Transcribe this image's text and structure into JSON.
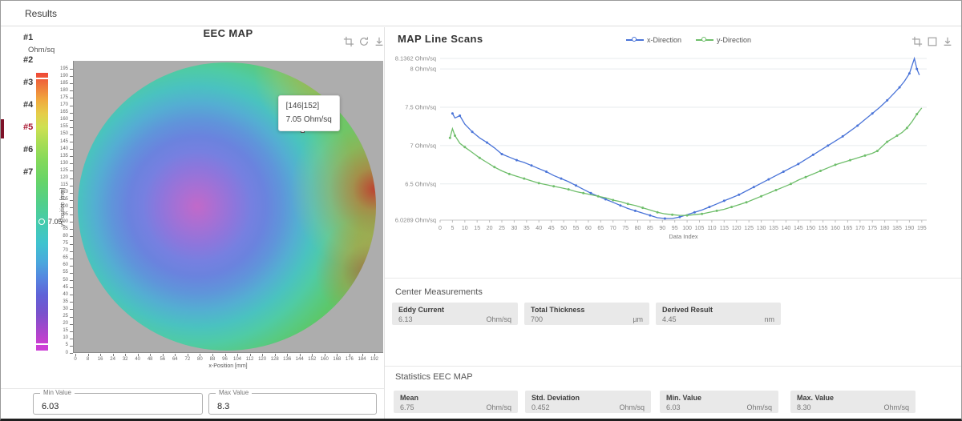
{
  "colors": {
    "active_item": "#a8132e",
    "series_x": "#4a74d8",
    "series_y": "#6fbe6b",
    "colorbar_min_color": "#cc3fd6",
    "colorbar_max_color": "#ef4837"
  },
  "header": {
    "title": "Results"
  },
  "sidebar": {
    "items": [
      {
        "label": "#1",
        "active": false
      },
      {
        "label": "#2",
        "active": false
      },
      {
        "label": "#3",
        "active": false
      },
      {
        "label": "#4",
        "active": false
      },
      {
        "label": "#5",
        "active": true
      },
      {
        "label": "#6",
        "active": false
      },
      {
        "label": "#7",
        "active": false
      }
    ]
  },
  "range_inputs": {
    "min": {
      "label": "Min Value",
      "value": "6.03"
    },
    "max": {
      "label": "Max Value",
      "value": "8.3"
    }
  },
  "measurements": {
    "title": "Center Measurements",
    "items": [
      {
        "label": "Eddy Current",
        "value": "6.13",
        "unit": "Ohm/sq"
      },
      {
        "label": "Total Thickness",
        "value": "700",
        "unit": "µm"
      },
      {
        "label": "Derived Result",
        "value": "4.45",
        "unit": "nm"
      }
    ]
  },
  "statistics": {
    "title": "Statistics EEC MAP",
    "items": [
      {
        "label": "Mean",
        "value": "6.75",
        "unit": "Ohm/sq"
      },
      {
        "label": "Std. Deviation",
        "value": "0.452",
        "unit": "Ohm/sq"
      },
      {
        "label": "Min. Value",
        "value": "6.03",
        "unit": "Ohm/sq"
      },
      {
        "label": "Max. Value",
        "value": "8.30",
        "unit": "Ohm/sq"
      }
    ]
  },
  "chart_data": [
    {
      "id": "eec_map",
      "type": "heatmap",
      "title": "EEC MAP",
      "xlabel": "x-Position [mm]",
      "ylabel": "y-Position [mm]",
      "x_ticks": {
        "min": 0,
        "max": 192,
        "step": 8
      },
      "y_ticks": {
        "min": 0,
        "max": 195,
        "step": 5
      },
      "colorbar": {
        "unit": "Ohm/sq",
        "min": 6.03,
        "max": 8.3,
        "marker": 7.05
      },
      "hover_point": {
        "x": 146,
        "y": 152,
        "value": 7.05,
        "label_position": "[146|152]",
        "label_value": "7.05 Ohm/sq"
      },
      "pattern": "circular wafer map: low values (~6.03, magenta/purple) around center-left near (75,100); values rise through blue, cyan and green toward the rim; maximum (~8.3, orange/red) along the right edge"
    },
    {
      "id": "map_line_scans",
      "type": "line",
      "title": "MAP Line Scans",
      "xlabel": "Data Index",
      "ylabel_unit": "Ohm/sq",
      "x_axis": {
        "min": 0,
        "max": 197,
        "tick_step": 5,
        "tick_max": 195
      },
      "y_axis": {
        "min": 6.0289,
        "max": 8.1362,
        "gridlines": [
          8.1362,
          8,
          7.5,
          7,
          6.5,
          6.0289
        ],
        "gridline_labels": [
          "8.1362 Ohm/sq",
          "8 Ohm/sq",
          "7.5 Ohm/sq",
          "7 Ohm/sq",
          "6.5 Ohm/sq",
          "6.0289 Ohm/sq"
        ]
      },
      "legend_position": "top",
      "grid": "horizontal-only",
      "series": [
        {
          "name": "x-Direction",
          "color": "#4a74d8",
          "points": [
            [
              5,
              7.42
            ],
            [
              6,
              7.36
            ],
            [
              8,
              7.39
            ],
            [
              10,
              7.28
            ],
            [
              13,
              7.18
            ],
            [
              16,
              7.1
            ],
            [
              19,
              7.04
            ],
            [
              22,
              6.97
            ],
            [
              25,
              6.89
            ],
            [
              28,
              6.85
            ],
            [
              31,
              6.81
            ],
            [
              34,
              6.78
            ],
            [
              37,
              6.74
            ],
            [
              40,
              6.7
            ],
            [
              43,
              6.66
            ],
            [
              46,
              6.61
            ],
            [
              49,
              6.57
            ],
            [
              52,
              6.53
            ],
            [
              55,
              6.48
            ],
            [
              58,
              6.43
            ],
            [
              61,
              6.38
            ],
            [
              64,
              6.34
            ],
            [
              67,
              6.3
            ],
            [
              70,
              6.26
            ],
            [
              73,
              6.22
            ],
            [
              76,
              6.18
            ],
            [
              79,
              6.15
            ],
            [
              82,
              6.12
            ],
            [
              85,
              6.09
            ],
            [
              88,
              6.06
            ],
            [
              91,
              6.05
            ],
            [
              94,
              6.05
            ],
            [
              97,
              6.07
            ],
            [
              100,
              6.1
            ],
            [
              103,
              6.13
            ],
            [
              106,
              6.16
            ],
            [
              109,
              6.2
            ],
            [
              112,
              6.24
            ],
            [
              115,
              6.28
            ],
            [
              118,
              6.32
            ],
            [
              121,
              6.36
            ],
            [
              124,
              6.41
            ],
            [
              127,
              6.46
            ],
            [
              130,
              6.51
            ],
            [
              133,
              6.56
            ],
            [
              136,
              6.61
            ],
            [
              139,
              6.66
            ],
            [
              142,
              6.71
            ],
            [
              145,
              6.76
            ],
            [
              148,
              6.82
            ],
            [
              151,
              6.88
            ],
            [
              154,
              6.94
            ],
            [
              157,
              7.0
            ],
            [
              160,
              7.06
            ],
            [
              163,
              7.12
            ],
            [
              166,
              7.19
            ],
            [
              169,
              7.26
            ],
            [
              172,
              7.34
            ],
            [
              175,
              7.42
            ],
            [
              178,
              7.5
            ],
            [
              181,
              7.59
            ],
            [
              184,
              7.69
            ],
            [
              186,
              7.76
            ],
            [
              188,
              7.84
            ],
            [
              190,
              7.94
            ],
            [
              192,
              8.136
            ],
            [
              193,
              8.0
            ],
            [
              194,
              7.92
            ]
          ]
        },
        {
          "name": "y-Direction",
          "color": "#6fbe6b",
          "points": [
            [
              4,
              7.1
            ],
            [
              5,
              7.22
            ],
            [
              6,
              7.13
            ],
            [
              8,
              7.03
            ],
            [
              10,
              6.98
            ],
            [
              13,
              6.91
            ],
            [
              16,
              6.84
            ],
            [
              19,
              6.78
            ],
            [
              22,
              6.72
            ],
            [
              25,
              6.67
            ],
            [
              28,
              6.63
            ],
            [
              31,
              6.6
            ],
            [
              34,
              6.57
            ],
            [
              37,
              6.54
            ],
            [
              40,
              6.51
            ],
            [
              43,
              6.49
            ],
            [
              46,
              6.47
            ],
            [
              49,
              6.45
            ],
            [
              52,
              6.43
            ],
            [
              55,
              6.4
            ],
            [
              58,
              6.38
            ],
            [
              61,
              6.36
            ],
            [
              64,
              6.34
            ],
            [
              67,
              6.32
            ],
            [
              70,
              6.29
            ],
            [
              73,
              6.27
            ],
            [
              76,
              6.24
            ],
            [
              79,
              6.22
            ],
            [
              82,
              6.19
            ],
            [
              85,
              6.16
            ],
            [
              88,
              6.13
            ],
            [
              91,
              6.11
            ],
            [
              94,
              6.1
            ],
            [
              97,
              6.09
            ],
            [
              100,
              6.09
            ],
            [
              103,
              6.1
            ],
            [
              106,
              6.11
            ],
            [
              109,
              6.13
            ],
            [
              112,
              6.15
            ],
            [
              115,
              6.17
            ],
            [
              118,
              6.2
            ],
            [
              121,
              6.23
            ],
            [
              124,
              6.26
            ],
            [
              127,
              6.3
            ],
            [
              130,
              6.34
            ],
            [
              133,
              6.38
            ],
            [
              136,
              6.42
            ],
            [
              139,
              6.46
            ],
            [
              142,
              6.5
            ],
            [
              145,
              6.55
            ],
            [
              148,
              6.59
            ],
            [
              151,
              6.63
            ],
            [
              154,
              6.67
            ],
            [
              157,
              6.71
            ],
            [
              160,
              6.75
            ],
            [
              163,
              6.78
            ],
            [
              166,
              6.81
            ],
            [
              169,
              6.84
            ],
            [
              172,
              6.87
            ],
            [
              175,
              6.9
            ],
            [
              177,
              6.93
            ],
            [
              179,
              6.99
            ],
            [
              181,
              7.05
            ],
            [
              183,
              7.09
            ],
            [
              185,
              7.13
            ],
            [
              187,
              7.17
            ],
            [
              189,
              7.23
            ],
            [
              191,
              7.31
            ],
            [
              193,
              7.41
            ],
            [
              195,
              7.49
            ]
          ]
        }
      ]
    }
  ]
}
